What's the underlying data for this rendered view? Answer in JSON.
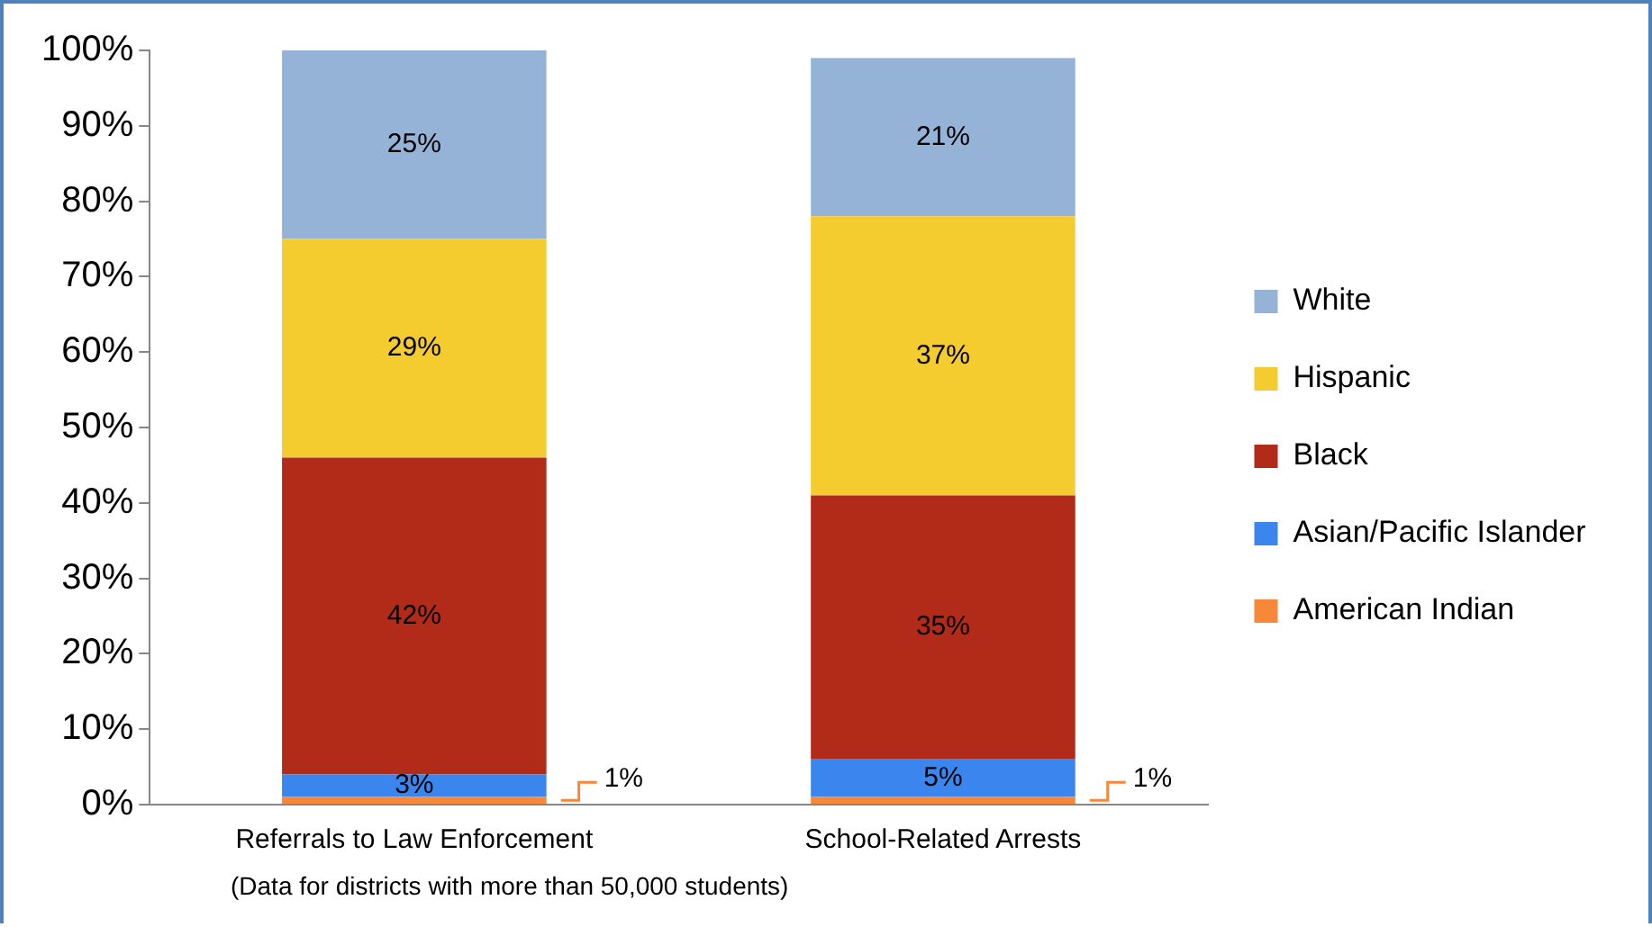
{
  "chart_data": {
    "type": "bar",
    "stacked": true,
    "categories": [
      "Referrals to Law Enforcement",
      "School-Related Arrests"
    ],
    "series": [
      {
        "name": "American Indian",
        "color": "#f7883a",
        "values": [
          1,
          1
        ],
        "value_labels": [
          "1%",
          "1%"
        ]
      },
      {
        "name": "Asian/Pacific Islander",
        "color": "#3a86ee",
        "values": [
          3,
          5
        ],
        "value_labels": [
          "3%",
          "5%"
        ]
      },
      {
        "name": "Black",
        "color": "#b22b18",
        "values": [
          42,
          35
        ],
        "value_labels": [
          "42%",
          "35%"
        ]
      },
      {
        "name": "Hispanic",
        "color": "#f4cc30",
        "values": [
          29,
          37
        ],
        "value_labels": [
          "29%",
          "37%"
        ]
      },
      {
        "name": "White",
        "color": "#95b3d7",
        "values": [
          25,
          21
        ],
        "value_labels": [
          "25%",
          "21%"
        ]
      }
    ],
    "ylim": [
      0,
      100
    ],
    "yticks": [
      {
        "value": 0,
        "label": "0%"
      },
      {
        "value": 10,
        "label": "10%"
      },
      {
        "value": 20,
        "label": "20%"
      },
      {
        "value": 30,
        "label": "30%"
      },
      {
        "value": 40,
        "label": "40%"
      },
      {
        "value": 50,
        "label": "50%"
      },
      {
        "value": 60,
        "label": "60%"
      },
      {
        "value": 70,
        "label": "70%"
      },
      {
        "value": 80,
        "label": "80%"
      },
      {
        "value": 90,
        "label": "90%"
      },
      {
        "value": 100,
        "label": "100%"
      }
    ],
    "grid": false,
    "legend": "right",
    "annotations": [
      "(Data for districts with more than 50,000 students)"
    ]
  }
}
